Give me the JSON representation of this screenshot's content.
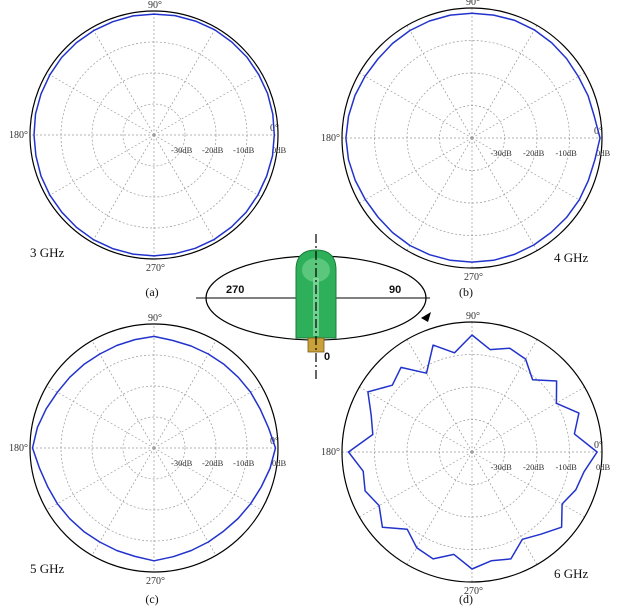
{
  "chart_data": [
    {
      "type": "polar",
      "panel_label": "(a)",
      "frequency_label": "3 GHz",
      "angle_ticks": [
        "90°",
        "0°",
        "270°",
        "180°"
      ],
      "radial_ticks": [
        "-30dB",
        "-20dB",
        "-10dB",
        "0dB"
      ],
      "radial_range_db": [
        -40,
        0
      ],
      "grid": true,
      "series": [
        {
          "angle_step_deg": 10,
          "values_db": [
            -1.2,
            -1.1,
            -1.0,
            -1.0,
            -0.9,
            -0.9,
            -0.8,
            -0.9,
            -0.9,
            -1.0,
            -1.0,
            -1.1,
            -1.1,
            -1.1,
            -1.1,
            -1.2,
            -1.2,
            -1.2,
            -1.3,
            -1.3,
            -1.2,
            -1.2,
            -1.2,
            -1.1,
            -1.0,
            -1.0,
            -1.0,
            -1.0,
            -1.1,
            -1.1,
            -1.1,
            -1.2,
            -1.2,
            -1.3,
            -1.3,
            -1.2
          ]
        }
      ]
    },
    {
      "type": "polar",
      "panel_label": "(b)",
      "frequency_label": "4 GHz",
      "angle_ticks": [
        "90°",
        "0°",
        "270°",
        "180°"
      ],
      "radial_ticks": [
        "-30dB",
        "-20dB",
        "-10dB",
        "0dB"
      ],
      "radial_range_db": [
        -40,
        0
      ],
      "grid": true,
      "series": [
        {
          "angle_step_deg": 10,
          "values_db": [
            -0.6,
            -1.8,
            -2.0,
            -2.2,
            -2.0,
            -1.8,
            -1.6,
            -1.5,
            -1.6,
            -1.6,
            -1.6,
            -1.7,
            -1.8,
            -2.0,
            -2.2,
            -2.0,
            -1.7,
            -1.4,
            -1.2,
            -1.4,
            -1.8,
            -2.1,
            -2.2,
            -2.0,
            -1.8,
            -1.8,
            -1.8,
            -1.8,
            -1.8,
            -1.9,
            -2.0,
            -2.1,
            -2.0,
            -1.9,
            -1.9,
            -1.6
          ]
        }
      ]
    },
    {
      "type": "polar",
      "panel_label": "(c)",
      "frequency_label": "5 GHz",
      "angle_ticks": [
        "90°",
        "0°",
        "270°",
        "180°"
      ],
      "radial_ticks": [
        "-30dB",
        "-20dB",
        "-10dB",
        "0dB"
      ],
      "radial_range_db": [
        -40,
        0
      ],
      "grid": true,
      "series": [
        {
          "angle_step_deg": 10,
          "values_db": [
            -0.8,
            -2.5,
            -3.5,
            -4.0,
            -4.5,
            -4.8,
            -5.0,
            -5.0,
            -4.8,
            -4.0,
            -4.5,
            -4.8,
            -5.0,
            -4.8,
            -4.5,
            -4.0,
            -3.0,
            -1.8,
            -0.8,
            -2.5,
            -3.5,
            -4.0,
            -4.5,
            -4.8,
            -5.0,
            -4.8,
            -4.5,
            -3.6,
            -4.4,
            -4.8,
            -5.0,
            -5.0,
            -4.6,
            -4.0,
            -3.2,
            -2.0
          ]
        }
      ]
    },
    {
      "type": "polar",
      "panel_label": "(d)",
      "frequency_label": "6 GHz",
      "angle_ticks": [
        "90°",
        "0°",
        "270°",
        "180°"
      ],
      "radial_ticks": [
        "-30dB",
        "-20dB",
        "-10dB",
        "0dB"
      ],
      "radial_range_db": [
        -40,
        0
      ],
      "grid": true,
      "series": [
        {
          "angle_step_deg": 10,
          "values_db": [
            -1.5,
            -8.0,
            -5.0,
            -10.0,
            -6.0,
            -11.0,
            -7.0,
            -6.0,
            -8.0,
            -4.0,
            -9.0,
            -5.0,
            -12.0,
            -6.0,
            -8.0,
            -3.0,
            -7.0,
            -9.0,
            -2.0,
            -6.0,
            -5.0,
            -7.0,
            -4.0,
            -9.0,
            -6.0,
            -5.0,
            -8.0,
            -4.0,
            -6.0,
            -5.0,
            -9.0,
            -7.0,
            -4.0,
            -8.0,
            -6.0,
            -5.0
          ]
        }
      ]
    }
  ],
  "orientation_diagram": {
    "label_left": "270",
    "label_right": "90",
    "label_bottom": "0"
  }
}
